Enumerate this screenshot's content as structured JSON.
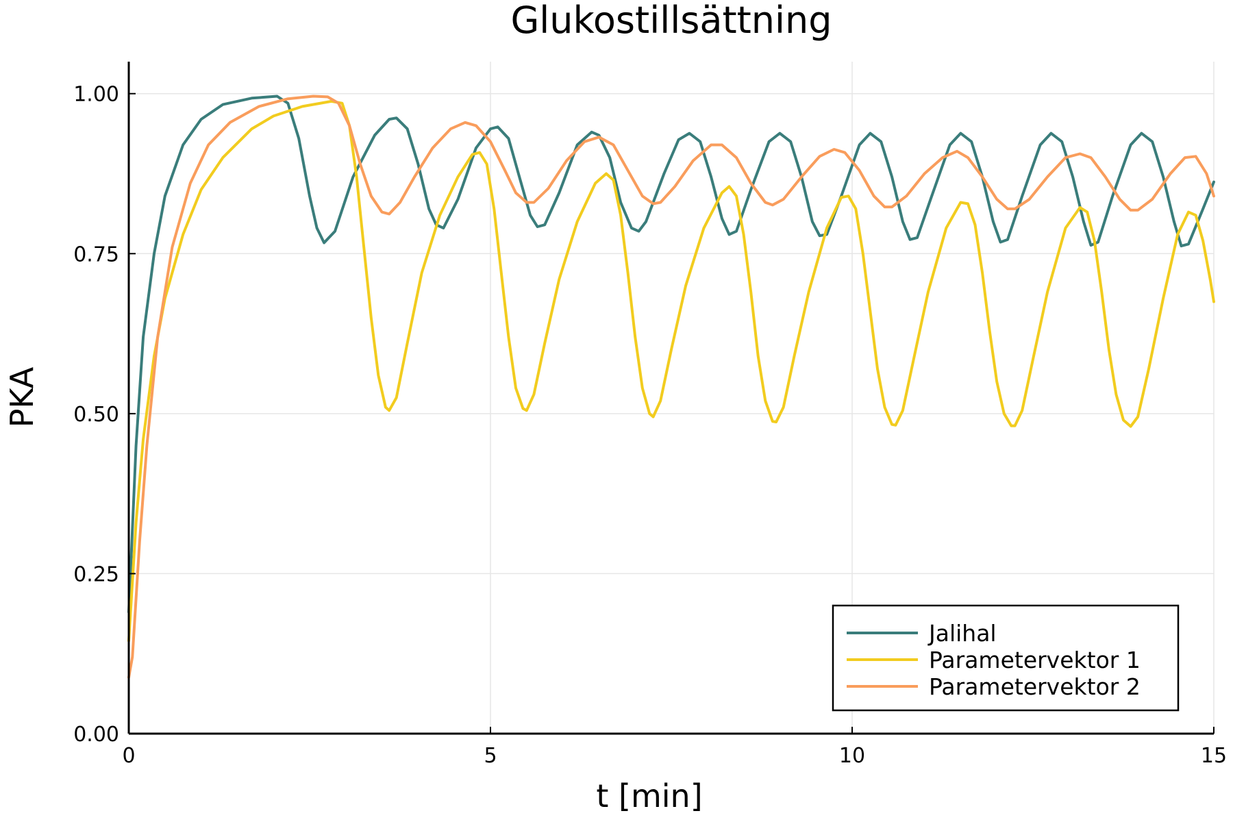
{
  "chart_data": {
    "type": "line",
    "title": "Glukostillsättning",
    "xlabel": "t [min]",
    "ylabel": "PKA",
    "xlim": [
      0,
      15
    ],
    "ylim": [
      0,
      1.05
    ],
    "x_ticks": [
      0,
      5,
      10,
      15
    ],
    "x_tick_labels": [
      "0",
      "5",
      "10",
      "15"
    ],
    "y_ticks": [
      0,
      0.25,
      0.5,
      0.75,
      1.0
    ],
    "y_tick_labels": [
      "0.00",
      "0.25",
      "0.50",
      "0.75",
      "1.00"
    ],
    "grid": true,
    "legend_position": "bottom-right",
    "series": [
      {
        "name": "Jalihal",
        "color": "#3a7d7b",
        "points": [
          [
            0.0,
            0.19
          ],
          [
            0.1,
            0.45
          ],
          [
            0.2,
            0.62
          ],
          [
            0.35,
            0.75
          ],
          [
            0.5,
            0.84
          ],
          [
            0.75,
            0.92
          ],
          [
            1.0,
            0.96
          ],
          [
            1.3,
            0.983
          ],
          [
            1.7,
            0.993
          ],
          [
            2.05,
            0.996
          ],
          [
            2.2,
            0.985
          ],
          [
            2.35,
            0.93
          ],
          [
            2.5,
            0.84
          ],
          [
            2.6,
            0.79
          ],
          [
            2.7,
            0.767
          ],
          [
            2.85,
            0.785
          ],
          [
            3.1,
            0.87
          ],
          [
            3.4,
            0.935
          ],
          [
            3.6,
            0.96
          ],
          [
            3.7,
            0.962
          ],
          [
            3.85,
            0.945
          ],
          [
            4.0,
            0.89
          ],
          [
            4.15,
            0.82
          ],
          [
            4.25,
            0.795
          ],
          [
            4.35,
            0.79
          ],
          [
            4.55,
            0.835
          ],
          [
            4.8,
            0.915
          ],
          [
            5.0,
            0.945
          ],
          [
            5.1,
            0.948
          ],
          [
            5.25,
            0.93
          ],
          [
            5.4,
            0.87
          ],
          [
            5.55,
            0.81
          ],
          [
            5.65,
            0.792
          ],
          [
            5.75,
            0.795
          ],
          [
            5.95,
            0.845
          ],
          [
            6.2,
            0.92
          ],
          [
            6.4,
            0.94
          ],
          [
            6.5,
            0.935
          ],
          [
            6.65,
            0.9
          ],
          [
            6.8,
            0.83
          ],
          [
            6.95,
            0.79
          ],
          [
            7.05,
            0.785
          ],
          [
            7.15,
            0.8
          ],
          [
            7.4,
            0.875
          ],
          [
            7.6,
            0.928
          ],
          [
            7.75,
            0.938
          ],
          [
            7.9,
            0.925
          ],
          [
            8.05,
            0.87
          ],
          [
            8.2,
            0.805
          ],
          [
            8.3,
            0.78
          ],
          [
            8.4,
            0.785
          ],
          [
            8.6,
            0.85
          ],
          [
            8.85,
            0.925
          ],
          [
            9.0,
            0.938
          ],
          [
            9.15,
            0.925
          ],
          [
            9.3,
            0.87
          ],
          [
            9.45,
            0.8
          ],
          [
            9.55,
            0.778
          ],
          [
            9.65,
            0.78
          ],
          [
            9.85,
            0.84
          ],
          [
            10.1,
            0.92
          ],
          [
            10.25,
            0.938
          ],
          [
            10.4,
            0.925
          ],
          [
            10.55,
            0.87
          ],
          [
            10.7,
            0.8
          ],
          [
            10.8,
            0.772
          ],
          [
            10.9,
            0.775
          ],
          [
            11.1,
            0.84
          ],
          [
            11.35,
            0.92
          ],
          [
            11.5,
            0.938
          ],
          [
            11.65,
            0.925
          ],
          [
            11.8,
            0.87
          ],
          [
            11.95,
            0.8
          ],
          [
            12.05,
            0.768
          ],
          [
            12.15,
            0.772
          ],
          [
            12.35,
            0.84
          ],
          [
            12.6,
            0.92
          ],
          [
            12.75,
            0.938
          ],
          [
            12.9,
            0.925
          ],
          [
            13.05,
            0.87
          ],
          [
            13.2,
            0.8
          ],
          [
            13.3,
            0.763
          ],
          [
            13.4,
            0.768
          ],
          [
            13.6,
            0.84
          ],
          [
            13.85,
            0.92
          ],
          [
            14.0,
            0.938
          ],
          [
            14.15,
            0.925
          ],
          [
            14.3,
            0.87
          ],
          [
            14.45,
            0.8
          ],
          [
            14.55,
            0.762
          ],
          [
            14.65,
            0.765
          ],
          [
            14.85,
            0.82
          ],
          [
            15.0,
            0.862
          ]
        ]
      },
      {
        "name": "Parametervektor 1",
        "color": "#f2cc1f",
        "points": [
          [
            0.0,
            0.145
          ],
          [
            0.1,
            0.33
          ],
          [
            0.2,
            0.46
          ],
          [
            0.35,
            0.59
          ],
          [
            0.5,
            0.68
          ],
          [
            0.75,
            0.78
          ],
          [
            1.0,
            0.85
          ],
          [
            1.3,
            0.9
          ],
          [
            1.7,
            0.945
          ],
          [
            2.0,
            0.965
          ],
          [
            2.4,
            0.98
          ],
          [
            2.8,
            0.988
          ],
          [
            2.95,
            0.985
          ],
          [
            3.05,
            0.95
          ],
          [
            3.15,
            0.87
          ],
          [
            3.25,
            0.76
          ],
          [
            3.35,
            0.65
          ],
          [
            3.45,
            0.56
          ],
          [
            3.55,
            0.51
          ],
          [
            3.6,
            0.505
          ],
          [
            3.7,
            0.525
          ],
          [
            3.85,
            0.61
          ],
          [
            4.05,
            0.72
          ],
          [
            4.3,
            0.81
          ],
          [
            4.55,
            0.87
          ],
          [
            4.75,
            0.905
          ],
          [
            4.85,
            0.908
          ],
          [
            4.95,
            0.89
          ],
          [
            5.05,
            0.82
          ],
          [
            5.15,
            0.72
          ],
          [
            5.25,
            0.62
          ],
          [
            5.35,
            0.54
          ],
          [
            5.45,
            0.508
          ],
          [
            5.5,
            0.505
          ],
          [
            5.6,
            0.53
          ],
          [
            5.75,
            0.61
          ],
          [
            5.95,
            0.71
          ],
          [
            6.2,
            0.8
          ],
          [
            6.45,
            0.86
          ],
          [
            6.6,
            0.875
          ],
          [
            6.7,
            0.865
          ],
          [
            6.8,
            0.81
          ],
          [
            6.9,
            0.72
          ],
          [
            7.0,
            0.62
          ],
          [
            7.1,
            0.54
          ],
          [
            7.2,
            0.5
          ],
          [
            7.25,
            0.495
          ],
          [
            7.35,
            0.52
          ],
          [
            7.5,
            0.6
          ],
          [
            7.7,
            0.7
          ],
          [
            7.95,
            0.79
          ],
          [
            8.2,
            0.845
          ],
          [
            8.3,
            0.855
          ],
          [
            8.4,
            0.84
          ],
          [
            8.5,
            0.78
          ],
          [
            8.6,
            0.69
          ],
          [
            8.7,
            0.59
          ],
          [
            8.8,
            0.52
          ],
          [
            8.9,
            0.488
          ],
          [
            8.95,
            0.487
          ],
          [
            9.05,
            0.51
          ],
          [
            9.2,
            0.59
          ],
          [
            9.4,
            0.69
          ],
          [
            9.65,
            0.79
          ],
          [
            9.85,
            0.838
          ],
          [
            9.95,
            0.84
          ],
          [
            10.05,
            0.82
          ],
          [
            10.15,
            0.75
          ],
          [
            10.25,
            0.66
          ],
          [
            10.35,
            0.57
          ],
          [
            10.45,
            0.51
          ],
          [
            10.55,
            0.483
          ],
          [
            10.6,
            0.482
          ],
          [
            10.7,
            0.505
          ],
          [
            10.85,
            0.585
          ],
          [
            11.05,
            0.69
          ],
          [
            11.3,
            0.79
          ],
          [
            11.5,
            0.83
          ],
          [
            11.6,
            0.828
          ],
          [
            11.7,
            0.795
          ],
          [
            11.8,
            0.72
          ],
          [
            11.9,
            0.63
          ],
          [
            12.0,
            0.55
          ],
          [
            12.1,
            0.5
          ],
          [
            12.2,
            0.481
          ],
          [
            12.25,
            0.481
          ],
          [
            12.35,
            0.505
          ],
          [
            12.5,
            0.585
          ],
          [
            12.7,
            0.69
          ],
          [
            12.95,
            0.79
          ],
          [
            13.15,
            0.822
          ],
          [
            13.25,
            0.815
          ],
          [
            13.35,
            0.77
          ],
          [
            13.45,
            0.69
          ],
          [
            13.55,
            0.6
          ],
          [
            13.65,
            0.53
          ],
          [
            13.75,
            0.49
          ],
          [
            13.85,
            0.48
          ],
          [
            13.95,
            0.495
          ],
          [
            14.1,
            0.57
          ],
          [
            14.3,
            0.68
          ],
          [
            14.5,
            0.78
          ],
          [
            14.65,
            0.815
          ],
          [
            14.75,
            0.81
          ],
          [
            14.85,
            0.77
          ],
          [
            14.95,
            0.71
          ],
          [
            15.0,
            0.675
          ]
        ]
      },
      {
        "name": "Parametervektor 2",
        "color": "#f99d5c",
        "points": [
          [
            0.0,
            0.088
          ],
          [
            0.05,
            0.12
          ],
          [
            0.15,
            0.3
          ],
          [
            0.25,
            0.45
          ],
          [
            0.4,
            0.62
          ],
          [
            0.6,
            0.76
          ],
          [
            0.85,
            0.86
          ],
          [
            1.1,
            0.92
          ],
          [
            1.4,
            0.955
          ],
          [
            1.8,
            0.98
          ],
          [
            2.2,
            0.992
          ],
          [
            2.55,
            0.996
          ],
          [
            2.75,
            0.995
          ],
          [
            2.9,
            0.985
          ],
          [
            3.05,
            0.95
          ],
          [
            3.2,
            0.89
          ],
          [
            3.35,
            0.84
          ],
          [
            3.5,
            0.815
          ],
          [
            3.6,
            0.812
          ],
          [
            3.75,
            0.83
          ],
          [
            3.95,
            0.87
          ],
          [
            4.2,
            0.915
          ],
          [
            4.45,
            0.945
          ],
          [
            4.65,
            0.955
          ],
          [
            4.8,
            0.95
          ],
          [
            5.0,
            0.925
          ],
          [
            5.2,
            0.88
          ],
          [
            5.35,
            0.845
          ],
          [
            5.5,
            0.83
          ],
          [
            5.6,
            0.83
          ],
          [
            5.8,
            0.852
          ],
          [
            6.05,
            0.895
          ],
          [
            6.3,
            0.925
          ],
          [
            6.5,
            0.932
          ],
          [
            6.7,
            0.92
          ],
          [
            6.9,
            0.88
          ],
          [
            7.1,
            0.84
          ],
          [
            7.25,
            0.828
          ],
          [
            7.35,
            0.83
          ],
          [
            7.55,
            0.855
          ],
          [
            7.8,
            0.895
          ],
          [
            8.05,
            0.92
          ],
          [
            8.2,
            0.92
          ],
          [
            8.4,
            0.9
          ],
          [
            8.6,
            0.86
          ],
          [
            8.8,
            0.83
          ],
          [
            8.9,
            0.826
          ],
          [
            9.05,
            0.835
          ],
          [
            9.3,
            0.87
          ],
          [
            9.55,
            0.902
          ],
          [
            9.75,
            0.913
          ],
          [
            9.9,
            0.908
          ],
          [
            10.1,
            0.88
          ],
          [
            10.3,
            0.84
          ],
          [
            10.45,
            0.823
          ],
          [
            10.55,
            0.823
          ],
          [
            10.75,
            0.84
          ],
          [
            11.0,
            0.875
          ],
          [
            11.25,
            0.9
          ],
          [
            11.45,
            0.91
          ],
          [
            11.6,
            0.9
          ],
          [
            11.8,
            0.87
          ],
          [
            12.0,
            0.835
          ],
          [
            12.15,
            0.82
          ],
          [
            12.25,
            0.82
          ],
          [
            12.45,
            0.835
          ],
          [
            12.7,
            0.87
          ],
          [
            12.95,
            0.9
          ],
          [
            13.15,
            0.906
          ],
          [
            13.3,
            0.9
          ],
          [
            13.5,
            0.87
          ],
          [
            13.7,
            0.835
          ],
          [
            13.85,
            0.818
          ],
          [
            13.95,
            0.818
          ],
          [
            14.15,
            0.835
          ],
          [
            14.4,
            0.875
          ],
          [
            14.6,
            0.9
          ],
          [
            14.75,
            0.902
          ],
          [
            14.9,
            0.875
          ],
          [
            15.0,
            0.84
          ]
        ]
      }
    ]
  }
}
